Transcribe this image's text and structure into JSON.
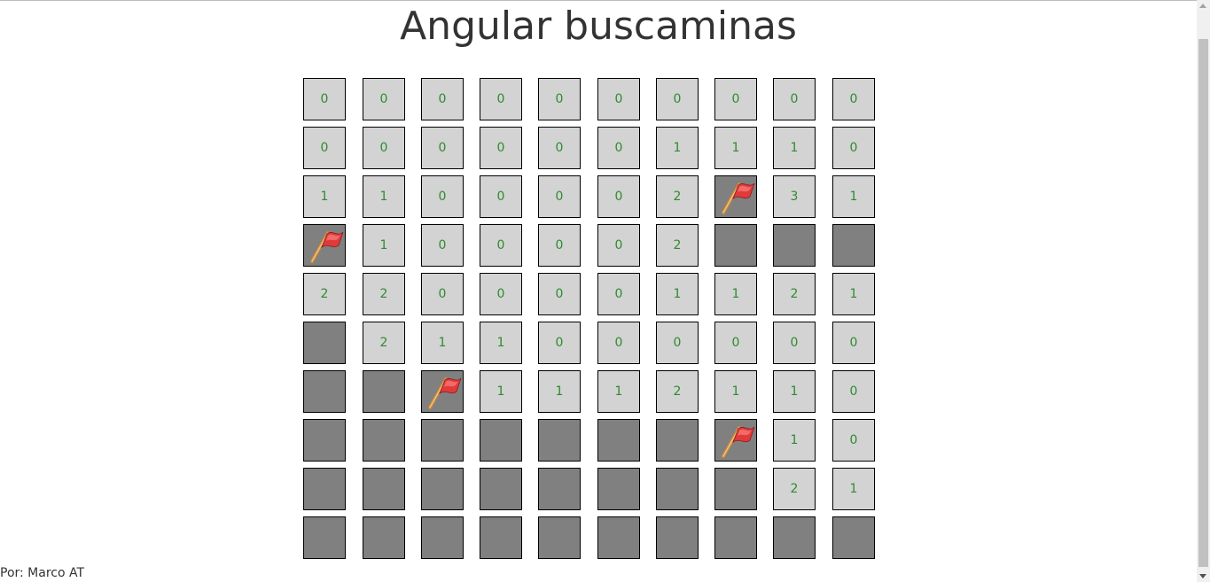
{
  "page": {
    "title": "Angular buscaminas",
    "footer": "Por: Marco AT"
  },
  "colors": {
    "revealed": "#d3d3d3",
    "hidden": "#808080",
    "number": "#2e8b2e",
    "flag": "#e03a3a"
  },
  "board": {
    "rows": [
      [
        "0",
        "0",
        "0",
        "0",
        "0",
        "0",
        "0",
        "0",
        "0",
        "0"
      ],
      [
        "0",
        "0",
        "0",
        "0",
        "0",
        "0",
        "1",
        "1",
        "1",
        "0"
      ],
      [
        "1",
        "1",
        "0",
        "0",
        "0",
        "0",
        "2",
        "F",
        "3",
        "1"
      ],
      [
        "F",
        "1",
        "0",
        "0",
        "0",
        "0",
        "2",
        "H",
        "H",
        "H"
      ],
      [
        "2",
        "2",
        "0",
        "0",
        "0",
        "0",
        "1",
        "1",
        "2",
        "1"
      ],
      [
        "H",
        "2",
        "1",
        "1",
        "0",
        "0",
        "0",
        "0",
        "0",
        "0"
      ],
      [
        "H",
        "H",
        "F",
        "1",
        "1",
        "1",
        "2",
        "1",
        "1",
        "0"
      ],
      [
        "H",
        "H",
        "H",
        "H",
        "H",
        "H",
        "H",
        "F",
        "1",
        "0"
      ],
      [
        "H",
        "H",
        "H",
        "H",
        "H",
        "H",
        "H",
        "H",
        "2",
        "1"
      ],
      [
        "H",
        "H",
        "H",
        "H",
        "H",
        "H",
        "H",
        "H",
        "H",
        "H"
      ]
    ]
  }
}
